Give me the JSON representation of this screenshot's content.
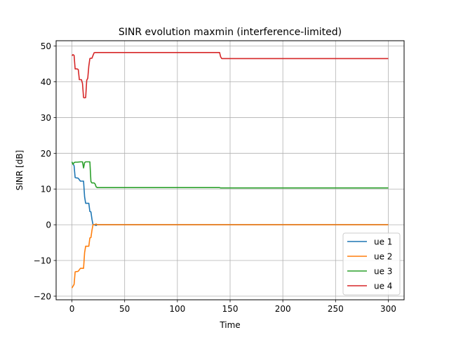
{
  "chart_data": {
    "type": "line",
    "title": "SINR evolution maxmin (interference-limited)",
    "xlabel": "Time",
    "ylabel": "SINR [dB]",
    "xlim": [
      -15,
      315
    ],
    "ylim": [
      -21,
      51.5
    ],
    "xticks": [
      0,
      50,
      100,
      150,
      200,
      250,
      300
    ],
    "xtick_labels": [
      "0",
      "50",
      "100",
      "150",
      "200",
      "250",
      "300"
    ],
    "yticks": [
      -20,
      -10,
      0,
      10,
      20,
      30,
      40,
      50
    ],
    "ytick_labels": [
      "−20",
      "−10",
      "0",
      "10",
      "20",
      "30",
      "40",
      "50"
    ],
    "grid": true,
    "legend_position": "lower-right",
    "series": [
      {
        "name": "ue 1",
        "color": "#1f77b4",
        "x": [
          0,
          2,
          3,
          4,
          5,
          6,
          7,
          8,
          9,
          10,
          11,
          12,
          13,
          14,
          15,
          16,
          17,
          18,
          19,
          20,
          21,
          22,
          23,
          24,
          25,
          300
        ],
        "y": [
          17.5,
          16.5,
          13.2,
          13.1,
          13.1,
          13.0,
          12.6,
          12.2,
          12.2,
          12.2,
          12.2,
          7.8,
          6.0,
          6.0,
          6.0,
          6.0,
          3.7,
          3.6,
          1.5,
          0.0,
          0.0,
          -0.1,
          -0.2,
          0.0,
          0.0,
          0.0
        ]
      },
      {
        "name": "ue 2",
        "color": "#ff7f0e",
        "x": [
          0,
          2,
          3,
          4,
          5,
          6,
          7,
          8,
          9,
          10,
          11,
          12,
          13,
          14,
          15,
          16,
          17,
          18,
          19,
          20,
          21,
          22,
          23,
          24,
          25,
          300
        ],
        "y": [
          -17.7,
          -16.7,
          -13.2,
          -13.1,
          -13.1,
          -13.0,
          -12.6,
          -12.2,
          -12.2,
          -12.2,
          -12.2,
          -7.8,
          -6.0,
          -6.0,
          -6.0,
          -6.0,
          -3.7,
          -3.6,
          -1.5,
          0.0,
          0.0,
          0.1,
          0.2,
          0.0,
          0.0,
          0.0
        ]
      },
      {
        "name": "ue 3",
        "color": "#2ca02c",
        "x": [
          0,
          1,
          2,
          3,
          5,
          8,
          10,
          11,
          12,
          13,
          14,
          15,
          17,
          18,
          19,
          20,
          21,
          22,
          23,
          24,
          25,
          140,
          141,
          300
        ],
        "y": [
          17.6,
          16.9,
          17.4,
          17.5,
          17.5,
          17.6,
          17.6,
          15.9,
          17.4,
          17.6,
          17.6,
          17.6,
          17.6,
          12.1,
          11.7,
          11.7,
          11.7,
          11.4,
          10.6,
          10.4,
          10.4,
          10.4,
          10.3,
          10.3
        ]
      },
      {
        "name": "ue 4",
        "color": "#d62728",
        "x": [
          0,
          1,
          2,
          3,
          5,
          6,
          7,
          9,
          10,
          11,
          12,
          13,
          14,
          15,
          16,
          17,
          18,
          19,
          20,
          21,
          22,
          23,
          140,
          141,
          142,
          143,
          300
        ],
        "y": [
          47.3,
          47.6,
          47.4,
          43.6,
          43.6,
          43.4,
          40.6,
          40.6,
          39.5,
          35.6,
          35.5,
          35.6,
          40.4,
          41.0,
          44.4,
          46.5,
          46.6,
          46.6,
          47.4,
          48.1,
          48.2,
          48.2,
          48.2,
          47.0,
          46.5,
          46.5,
          46.5
        ]
      }
    ]
  }
}
